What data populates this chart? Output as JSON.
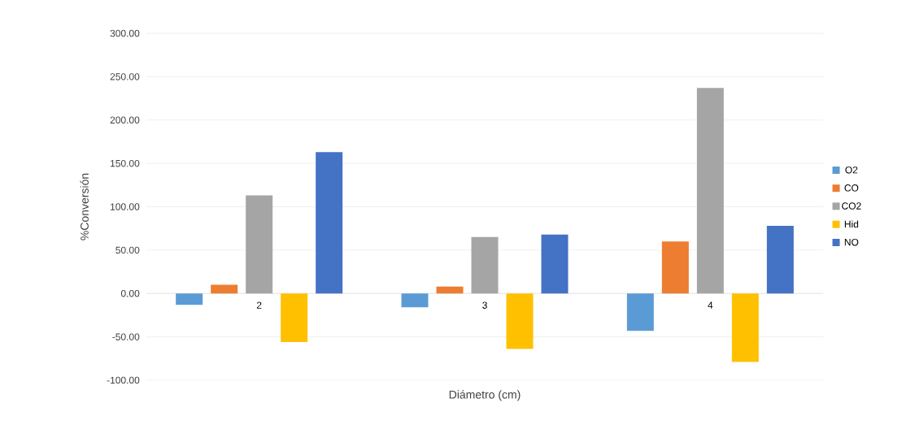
{
  "chart_data": {
    "type": "bar",
    "xlabel": "Diámetro (cm)",
    "ylabel": "%Conversión",
    "categories": [
      "2",
      "3",
      "4"
    ],
    "series": [
      {
        "name": "O2",
        "color": "#5b9bd5",
        "values": [
          -13,
          -16,
          -43
        ]
      },
      {
        "name": "CO",
        "color": "#ed7d31",
        "values": [
          10,
          8,
          60
        ]
      },
      {
        "name": "CO2",
        "color": "#a5a5a5",
        "values": [
          113,
          65,
          237
        ]
      },
      {
        "name": "Hid",
        "color": "#ffc000",
        "values": [
          -56,
          -64,
          -79
        ]
      },
      {
        "name": "NO",
        "color": "#4472c4",
        "values": [
          163,
          68,
          78
        ]
      }
    ],
    "ylim": [
      -100,
      300
    ],
    "yticks": [
      {
        "value": -100,
        "label": "-100.00"
      },
      {
        "value": -50,
        "label": "-50.00"
      },
      {
        "value": 0,
        "label": "0.00"
      },
      {
        "value": 50,
        "label": "50.00"
      },
      {
        "value": 100,
        "label": "100.00"
      },
      {
        "value": 150,
        "label": "150.00"
      },
      {
        "value": 200,
        "label": "200.00"
      },
      {
        "value": 250,
        "label": "250.00"
      },
      {
        "value": 300,
        "label": "300.00"
      }
    ],
    "grid": "y",
    "legend": "right"
  }
}
